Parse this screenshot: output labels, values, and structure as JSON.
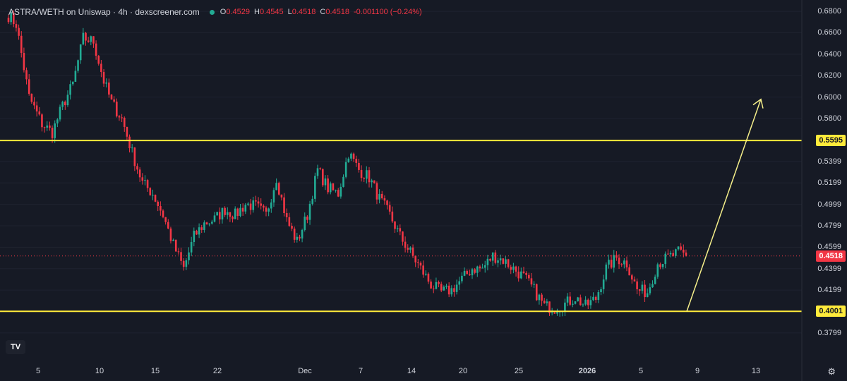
{
  "header": {
    "title": "ASTRA/WETH on Uniswap · 4h · dexscreener.com",
    "ohlc": {
      "o_label": "O",
      "o": "0.4529",
      "h_label": "H",
      "h": "0.4545",
      "l_label": "L",
      "l": "0.4518",
      "c_label": "C",
      "c": "0.4518",
      "change": "-0.001100 (−0.24%)"
    }
  },
  "colors": {
    "background": "#161a25",
    "up": "#22ab94",
    "down": "#f23645",
    "level": "#ffeb3b",
    "arrow": "#f5ef8a"
  },
  "icons": {
    "logo": "tradingview-logo-icon",
    "settings": "settings-gear-icon"
  },
  "chart_data": {
    "type": "candlestick",
    "y_axis_ticks": [
      "0.6800",
      "0.6600",
      "0.6400",
      "0.6200",
      "0.6000",
      "0.5800",
      "0.5399",
      "0.5199",
      "0.4999",
      "0.4799",
      "0.4599",
      "0.4399",
      "0.4199",
      "0.3799"
    ],
    "y_range": [
      0.368,
      0.684
    ],
    "x_axis_ticks": [
      {
        "label": "5",
        "bold": false
      },
      {
        "label": "10",
        "bold": false
      },
      {
        "label": "15",
        "bold": false
      },
      {
        "label": "22",
        "bold": false
      },
      {
        "label": "Dec",
        "bold": false
      },
      {
        "label": "7",
        "bold": false
      },
      {
        "label": "14",
        "bold": false
      },
      {
        "label": "20",
        "bold": false
      },
      {
        "label": "25",
        "bold": false
      },
      {
        "label": "2026",
        "bold": true
      },
      {
        "label": "5",
        "bold": false
      },
      {
        "label": "9",
        "bold": false
      },
      {
        "label": "13",
        "bold": false
      }
    ],
    "horizontal_levels": [
      {
        "value": 0.5595,
        "label": "0.5595"
      },
      {
        "value": 0.4001,
        "label": "0.4001"
      }
    ],
    "last_price": {
      "value": 0.4518,
      "label": "0.4518"
    },
    "projection_arrow": {
      "from": {
        "bar": 173,
        "value": 0.4001
      },
      "to": {
        "bar": 193,
        "value": 0.598
      }
    },
    "close_path_keypoints": [
      [
        0,
        0.676
      ],
      [
        3,
        0.668
      ],
      [
        8,
        0.6
      ],
      [
        13,
        0.575
      ],
      [
        17,
        0.567
      ],
      [
        21,
        0.592
      ],
      [
        25,
        0.612
      ],
      [
        29,
        0.655
      ],
      [
        33,
        0.652
      ],
      [
        37,
        0.615
      ],
      [
        40,
        0.595
      ],
      [
        44,
        0.58
      ],
      [
        48,
        0.548
      ],
      [
        52,
        0.52
      ],
      [
        56,
        0.51
      ],
      [
        60,
        0.49
      ],
      [
        64,
        0.462
      ],
      [
        68,
        0.44
      ],
      [
        72,
        0.47
      ],
      [
        76,
        0.482
      ],
      [
        80,
        0.486
      ],
      [
        84,
        0.495
      ],
      [
        88,
        0.49
      ],
      [
        92,
        0.5
      ],
      [
        96,
        0.498
      ],
      [
        100,
        0.49
      ],
      [
        104,
        0.525
      ],
      [
        108,
        0.485
      ],
      [
        112,
        0.465
      ],
      [
        116,
        0.49
      ],
      [
        120,
        0.532
      ],
      [
        124,
        0.515
      ],
      [
        128,
        0.51
      ],
      [
        132,
        0.548
      ],
      [
        136,
        0.532
      ],
      [
        140,
        0.525
      ],
      [
        144,
        0.505
      ],
      [
        148,
        0.49
      ],
      [
        152,
        0.47
      ],
      [
        156,
        0.455
      ],
      [
        160,
        0.44
      ],
      [
        164,
        0.425
      ],
      [
        168,
        0.418
      ],
      [
        172,
        0.42
      ],
      [
        176,
        0.43
      ],
      [
        180,
        0.44
      ],
      [
        184,
        0.44
      ],
      [
        188,
        0.452
      ],
      [
        192,
        0.448
      ],
      [
        196,
        0.44
      ],
      [
        200,
        0.432
      ],
      [
        204,
        0.42
      ],
      [
        208,
        0.405
      ],
      [
        212,
        0.403
      ],
      [
        216,
        0.407
      ],
      [
        220,
        0.413
      ],
      [
        224,
        0.405
      ],
      [
        228,
        0.412
      ],
      [
        232,
        0.44
      ],
      [
        236,
        0.45
      ],
      [
        240,
        0.445
      ],
      [
        244,
        0.42
      ],
      [
        248,
        0.418
      ],
      [
        252,
        0.445
      ],
      [
        256,
        0.45
      ],
      [
        260,
        0.455
      ],
      [
        263,
        0.452
      ]
    ]
  }
}
